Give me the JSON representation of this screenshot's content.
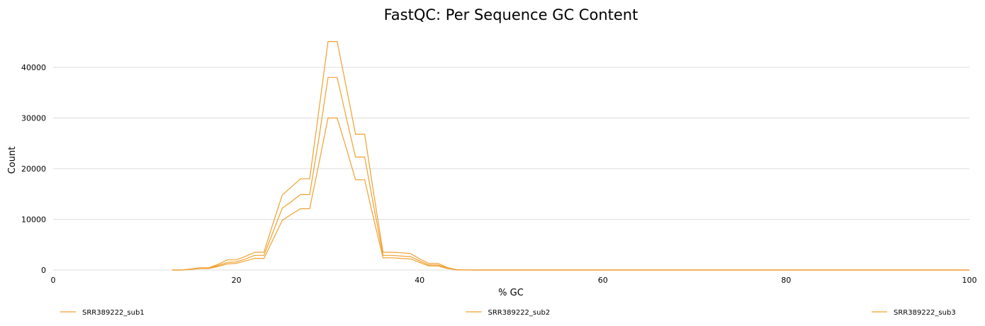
{
  "chart_data": {
    "type": "line",
    "title": "FastQC: Per Sequence GC Content",
    "xlabel": "% GC",
    "ylabel": "Count",
    "xlim": [
      0,
      100
    ],
    "ylim": [
      0,
      47000
    ],
    "xticks": [
      0,
      20,
      40,
      60,
      80,
      100
    ],
    "yticks": [
      0,
      10000,
      20000,
      30000,
      40000
    ],
    "grid": true,
    "legend_position": "bottom",
    "line_color": "#f0a030",
    "x": [
      13,
      14,
      15,
      16,
      17,
      18,
      19,
      20,
      21,
      22,
      23,
      24,
      25,
      26,
      27,
      28,
      29,
      30,
      31,
      32,
      33,
      34,
      35,
      36,
      37,
      38,
      39,
      40,
      41,
      42,
      43,
      44,
      45,
      46,
      47,
      48,
      49,
      50,
      100
    ],
    "series": [
      {
        "name": "SRR389222_sub1",
        "values": [
          0,
          0,
          100,
          300,
          300,
          700,
          1200,
          1300,
          1800,
          2300,
          2300,
          6000,
          9800,
          11000,
          12100,
          12100,
          21000,
          30000,
          30000,
          24000,
          17800,
          17800,
          10000,
          2400,
          2400,
          2300,
          2200,
          1500,
          800,
          800,
          300,
          50,
          20,
          0,
          0,
          0,
          0,
          0,
          0
        ]
      },
      {
        "name": "SRR389222_sub2",
        "values": [
          0,
          0,
          150,
          350,
          350,
          900,
          1500,
          1600,
          2200,
          2900,
          2900,
          7500,
          12200,
          13500,
          14900,
          14900,
          26000,
          38000,
          38000,
          30000,
          22300,
          22300,
          12500,
          2900,
          2900,
          2750,
          2650,
          1800,
          1000,
          1000,
          400,
          60,
          20,
          0,
          0,
          0,
          0,
          0,
          0
        ]
      },
      {
        "name": "SRR389222_sub3",
        "values": [
          0,
          0,
          200,
          450,
          450,
          1100,
          2000,
          2000,
          2700,
          3500,
          3500,
          9200,
          14800,
          16400,
          18000,
          18000,
          31500,
          45100,
          45100,
          36000,
          26800,
          26800,
          15000,
          3500,
          3500,
          3400,
          3250,
          2200,
          1300,
          1300,
          500,
          80,
          30,
          0,
          0,
          0,
          0,
          0,
          0
        ]
      }
    ]
  }
}
